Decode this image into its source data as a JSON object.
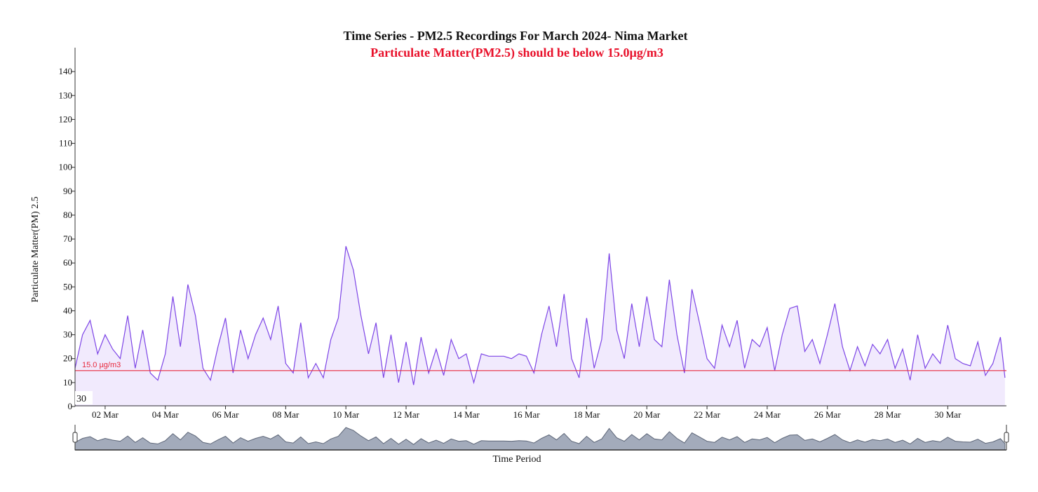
{
  "chart_data": {
    "type": "area",
    "title": "Time Series - PM2.5 Recordings For March 2024- Nima Market",
    "subtitle": "Particulate Matter(PM2.5) should be below 15.0µg/m3",
    "y_label": "Particulate Matter(PM) 2.5",
    "x_label": "Time Period",
    "annotation": "30",
    "color": "#7d45e6",
    "fill": "#f1eafd",
    "navigator_color": "#a3abbb",
    "threshold": {
      "value": 15,
      "label": "15.0 µg/m3",
      "color": "#e8283c"
    },
    "x": [
      1,
      1.25,
      1.5,
      1.75,
      2,
      2.25,
      2.5,
      2.75,
      3,
      3.25,
      3.5,
      3.75,
      4,
      4.25,
      4.5,
      4.75,
      5,
      5.25,
      5.5,
      5.75,
      6,
      6.25,
      6.5,
      6.75,
      7,
      7.25,
      7.5,
      7.75,
      8,
      8.25,
      8.5,
      8.75,
      9,
      9.25,
      9.5,
      9.75,
      10,
      10.25,
      10.5,
      10.75,
      11,
      11.25,
      11.5,
      11.75,
      12,
      12.25,
      12.5,
      12.75,
      13,
      13.25,
      13.5,
      13.75,
      14,
      14.25,
      14.5,
      14.75,
      15,
      15.25,
      15.5,
      15.75,
      16,
      16.25,
      16.5,
      16.75,
      17,
      17.25,
      17.5,
      17.75,
      18,
      18.25,
      18.5,
      18.75,
      19,
      19.25,
      19.5,
      19.75,
      20,
      20.25,
      20.5,
      20.75,
      21,
      21.25,
      21.5,
      21.75,
      22,
      22.25,
      22.5,
      22.75,
      23,
      23.25,
      23.5,
      23.75,
      24,
      24.25,
      24.5,
      24.75,
      25,
      25.25,
      25.5,
      25.75,
      26,
      26.25,
      26.5,
      26.75,
      27,
      27.25,
      27.5,
      27.75,
      28,
      28.25,
      28.5,
      28.75,
      29,
      29.25,
      29.5,
      29.75,
      30,
      30.25,
      30.5,
      30.75,
      31,
      31.25,
      31.5,
      31.75,
      31.9
    ],
    "values": [
      16,
      30,
      36,
      22,
      30,
      24,
      20,
      38,
      16,
      32,
      14,
      11,
      22,
      46,
      25,
      51,
      38,
      16,
      11,
      25,
      37,
      14,
      32,
      20,
      30,
      37,
      28,
      42,
      18,
      14,
      35,
      12,
      18,
      12,
      28,
      37,
      67,
      57,
      38,
      22,
      35,
      12,
      30,
      10,
      27,
      9,
      29,
      14,
      24,
      13,
      28,
      20,
      22,
      10,
      22,
      21,
      21,
      21,
      20,
      22,
      21,
      14,
      30,
      42,
      25,
      47,
      20,
      12,
      37,
      16,
      28,
      64,
      32,
      20,
      43,
      25,
      46,
      28,
      25,
      53,
      30,
      14,
      49,
      35,
      20,
      16,
      34,
      25,
      36,
      16,
      28,
      25,
      33,
      15,
      30,
      41,
      42,
      23,
      28,
      18,
      30,
      43,
      25,
      15,
      25,
      17,
      26,
      22,
      28,
      16,
      24,
      11,
      30,
      16,
      22,
      18,
      34,
      20,
      18,
      17,
      27,
      13,
      18,
      29,
      12
    ],
    "xlim": [
      1,
      31.95
    ],
    "xticks": [
      {
        "value": 2,
        "label": "02 Mar"
      },
      {
        "value": 4,
        "label": "04 Mar"
      },
      {
        "value": 6,
        "label": "06 Mar"
      },
      {
        "value": 8,
        "label": "08 Mar"
      },
      {
        "value": 10,
        "label": "10 Mar"
      },
      {
        "value": 12,
        "label": "12 Mar"
      },
      {
        "value": 14,
        "label": "14 Mar"
      },
      {
        "value": 16,
        "label": "16 Mar"
      },
      {
        "value": 18,
        "label": "18 Mar"
      },
      {
        "value": 20,
        "label": "20 Mar"
      },
      {
        "value": 22,
        "label": "22 Mar"
      },
      {
        "value": 24,
        "label": "24 Mar"
      },
      {
        "value": 26,
        "label": "26 Mar"
      },
      {
        "value": 28,
        "label": "28 Mar"
      },
      {
        "value": 30,
        "label": "30 Mar"
      }
    ],
    "ylim": [
      0,
      150
    ],
    "yticks": [
      0,
      10,
      20,
      30,
      40,
      50,
      60,
      70,
      80,
      90,
      100,
      110,
      120,
      130,
      140
    ],
    "grid": false
  }
}
